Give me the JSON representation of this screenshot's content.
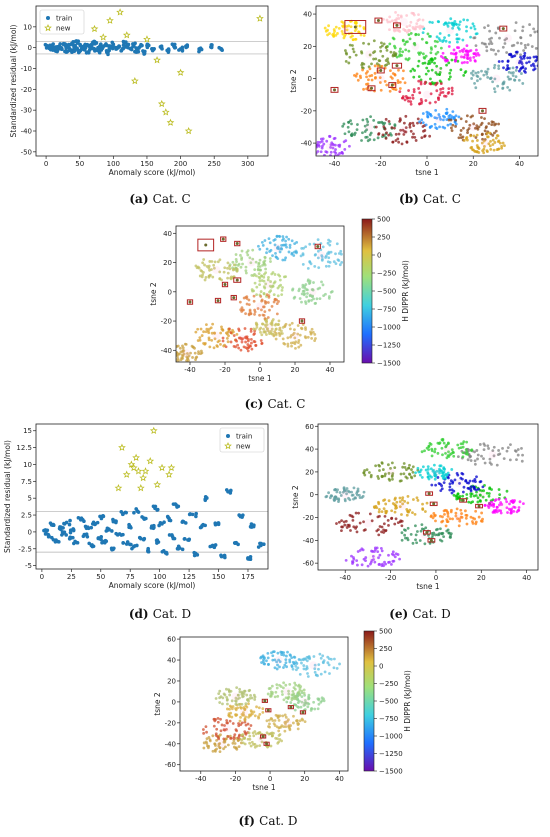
{
  "chart_data": [
    {
      "id": "a",
      "type": "scatter",
      "caption_label": "(a)",
      "caption_text": "Cat. C",
      "xlabel": "Anomaly score (kJ/mol)",
      "ylabel": "Standardized residual (kJ/mol)",
      "xlim": [
        -15,
        330
      ],
      "ylim": [
        -52,
        20
      ],
      "xticks": [
        0,
        50,
        100,
        150,
        200,
        250,
        300
      ],
      "yticks": [
        -50,
        -40,
        -30,
        -20,
        -10,
        0,
        10
      ],
      "hlines": [
        3,
        -3
      ],
      "legend_position": "top-left",
      "series": [
        {
          "name": "train",
          "marker": "circle",
          "color": "#1f77b4",
          "x": [
            2,
            5,
            8,
            11,
            14,
            17,
            20,
            23,
            26,
            29,
            32,
            35,
            38,
            41,
            44,
            47,
            50,
            53,
            56,
            59,
            62,
            65,
            68,
            71,
            74,
            77,
            80,
            84,
            88,
            92,
            96,
            100,
            104,
            108,
            112,
            116,
            120,
            125,
            130,
            135,
            140,
            145,
            150,
            160,
            170,
            180,
            190,
            200,
            210,
            230,
            245,
            260
          ],
          "y": [
            0.5,
            -0.4,
            1.1,
            -0.8,
            0.3,
            -1.2,
            0.9,
            -0.2,
            1.5,
            -1.6,
            0.7,
            -0.6,
            1.9,
            -1.1,
            0.2,
            2.2,
            -1.8,
            0.6,
            -0.9,
            1.3,
            -2.1,
            0.4,
            1.7,
            -0.5,
            2.4,
            -1.4,
            0.8,
            -0.3,
            1.2,
            -2.4,
            0.5,
            1.6,
            -0.7,
            0.3,
            -1.5,
            2.1,
            0.9,
            -0.4,
            1.4,
            -1.1,
            0.6,
            -2.0,
            1.0,
            -0.8,
            0.4,
            -1.3,
            0.7,
            -0.6,
            1.1,
            -0.9,
            0.3,
            -0.5
          ]
        },
        {
          "name": "new",
          "marker": "star",
          "color": "#bcbd22",
          "x": [
            72,
            85,
            95,
            110,
            120,
            132,
            150,
            165,
            172,
            178,
            185,
            200,
            212,
            318
          ],
          "y": [
            9,
            5,
            13,
            17,
            6,
            -16,
            4,
            -6,
            -27,
            -31,
            -36,
            -12,
            -40,
            14
          ]
        }
      ]
    },
    {
      "id": "b",
      "type": "scatter",
      "caption_label": "(b)",
      "caption_text": "Cat. C",
      "xlabel": "tsne 1",
      "ylabel": "tsne 2",
      "xlim": [
        -48,
        48
      ],
      "ylim": [
        -48,
        45
      ],
      "xticks": [
        -40,
        -20,
        0,
        20,
        40
      ],
      "yticks": [
        -40,
        -20,
        0,
        20,
        40
      ],
      "clusters": [
        {
          "x": -42,
          "y": -42,
          "r": 3,
          "color": "#9b30ff"
        },
        {
          "x": -25,
          "y": -30,
          "r": 4,
          "color": "#2e8b57"
        },
        {
          "x": -10,
          "y": -32,
          "r": 4,
          "color": "#8b1a1a"
        },
        {
          "x": 5,
          "y": -25,
          "r": 3,
          "color": "#1e90ff"
        },
        {
          "x": 20,
          "y": -30,
          "r": 4,
          "color": "#8b4513"
        },
        {
          "x": 25,
          "y": -40,
          "r": 3,
          "color": "#d4a017"
        },
        {
          "x": 30,
          "y": 0,
          "r": 4,
          "color": "#5f9ea0"
        },
        {
          "x": 35,
          "y": 25,
          "r": 5,
          "color": "#808080"
        },
        {
          "x": 40,
          "y": 10,
          "r": 3,
          "color": "#0000cd"
        },
        {
          "x": 10,
          "y": 30,
          "r": 4,
          "color": "#00ced1"
        },
        {
          "x": -5,
          "y": 20,
          "r": 4,
          "color": "#32cd32"
        },
        {
          "x": -25,
          "y": 15,
          "r": 4,
          "color": "#6b8e23"
        },
        {
          "x": -20,
          "y": 0,
          "r": 4,
          "color": "#ff7f0e"
        },
        {
          "x": 5,
          "y": 5,
          "r": 4,
          "color": "#00c000"
        },
        {
          "x": 15,
          "y": 15,
          "r": 3,
          "color": "#ff00ff"
        },
        {
          "x": -35,
          "y": 30,
          "r": 3,
          "color": "#ffd700"
        },
        {
          "x": 0,
          "y": -10,
          "r": 4,
          "color": "#dc143c"
        },
        {
          "x": -10,
          "y": 35,
          "r": 3,
          "color": "#ffc0cb"
        }
      ],
      "boxes": [
        [
          -31,
          32,
          9,
          8
        ],
        [
          -21,
          36,
          3,
          3
        ],
        [
          -13,
          33,
          3,
          3
        ],
        [
          -13,
          8,
          4,
          3
        ],
        [
          -20,
          5,
          3,
          3
        ],
        [
          -24,
          -6,
          3,
          3
        ],
        [
          -40,
          -7,
          3,
          3
        ],
        [
          -15,
          -4,
          3,
          3
        ],
        [
          24,
          -20,
          3,
          3
        ],
        [
          33,
          31,
          3,
          3
        ]
      ],
      "colorbar": null
    },
    {
      "id": "c",
      "type": "scatter",
      "caption_label": "(c)",
      "caption_text": "Cat. C",
      "xlabel": "tsne 1",
      "ylabel": "tsne 2",
      "xlim": [
        -48,
        48
      ],
      "ylim": [
        -48,
        45
      ],
      "xticks": [
        -40,
        -20,
        0,
        20,
        40
      ],
      "yticks": [
        -40,
        -20,
        0,
        20,
        40
      ],
      "clusters": [
        {
          "x": -42,
          "y": -42,
          "r": 3,
          "color": "#c8a040"
        },
        {
          "x": -25,
          "y": -30,
          "r": 4,
          "color": "#d9a030"
        },
        {
          "x": -10,
          "y": -32,
          "r": 4,
          "color": "#e05030"
        },
        {
          "x": 5,
          "y": -25,
          "r": 3,
          "color": "#c8c060"
        },
        {
          "x": 20,
          "y": -30,
          "r": 4,
          "color": "#d0b050"
        },
        {
          "x": 30,
          "y": 0,
          "r": 4,
          "color": "#90d090"
        },
        {
          "x": 35,
          "y": 25,
          "r": 5,
          "color": "#60c0e0"
        },
        {
          "x": 10,
          "y": 30,
          "r": 4,
          "color": "#40b0e0"
        },
        {
          "x": -5,
          "y": 20,
          "r": 4,
          "color": "#a0d080"
        },
        {
          "x": -25,
          "y": 15,
          "r": 4,
          "color": "#c0c060"
        },
        {
          "x": 5,
          "y": 5,
          "r": 4,
          "color": "#b0d070"
        },
        {
          "x": 0,
          "y": -10,
          "r": 4,
          "color": "#e08040"
        }
      ],
      "boxes": [
        [
          -31,
          32,
          9,
          8
        ],
        [
          -21,
          36,
          3,
          3
        ],
        [
          -13,
          33,
          3,
          3
        ],
        [
          -13,
          8,
          4,
          3
        ],
        [
          -20,
          5,
          3,
          3
        ],
        [
          -24,
          -6,
          3,
          3
        ],
        [
          -40,
          -7,
          3,
          3
        ],
        [
          -15,
          -4,
          3,
          3
        ],
        [
          24,
          -20,
          3,
          3
        ],
        [
          33,
          31,
          3,
          3
        ]
      ],
      "colorbar": {
        "label": "H DIPPR (kJ/mol)",
        "range": [
          -1500,
          500
        ],
        "ticks": [
          500,
          250,
          0,
          -250,
          -500,
          -750,
          -1000,
          -1250,
          -1500
        ]
      }
    },
    {
      "id": "d",
      "type": "scatter",
      "caption_label": "(d)",
      "caption_text": "Cat. D",
      "xlabel": "Anomaly score (kJ/mol)",
      "ylabel": "Standardized residual (kJ/mol)",
      "xlim": [
        -5,
        192
      ],
      "ylim": [
        -5.5,
        16
      ],
      "xticks": [
        0,
        25,
        50,
        75,
        100,
        125,
        150,
        175
      ],
      "yticks": [
        -5.0,
        -2.5,
        0.0,
        2.5,
        5.0,
        7.5,
        10.0,
        12.5,
        15.0
      ],
      "hlines": [
        3,
        -3
      ],
      "legend_position": "top-right",
      "series": [
        {
          "name": "train",
          "marker": "circle",
          "color": "#1f77b4",
          "x": [
            3,
            6,
            9,
            12,
            15,
            18,
            21,
            24,
            27,
            30,
            33,
            36,
            39,
            42,
            45,
            48,
            51,
            54,
            57,
            60,
            63,
            66,
            69,
            72,
            75,
            78,
            81,
            84,
            87,
            90,
            93,
            96,
            99,
            102,
            105,
            108,
            111,
            114,
            117,
            120,
            124,
            128,
            132,
            136,
            140,
            145,
            150,
            155,
            160,
            165,
            170,
            175,
            180,
            186
          ],
          "y": [
            0.3,
            -0.6,
            1.0,
            -1.2,
            0.5,
            -0.2,
            1.4,
            -0.8,
            0.2,
            -1.6,
            1.8,
            -0.4,
            0.7,
            -2.0,
            1.1,
            -0.9,
            2.3,
            -1.3,
            0.4,
            -2.5,
            1.6,
            -0.3,
            2.7,
            -1.8,
            0.8,
            -2.2,
            3.1,
            -1.0,
            1.9,
            -2.8,
            0.6,
            3.5,
            -1.5,
            1.2,
            -3.1,
            2.0,
            -0.7,
            4.0,
            -2.4,
            1.5,
            -1.2,
            2.6,
            -3.4,
            0.9,
            5.0,
            -2.0,
            1.3,
            -3.5,
            6.0,
            -1.6,
            2.2,
            -4.0,
            1.0,
            -2.0
          ]
        },
        {
          "name": "new",
          "marker": "star",
          "color": "#bcbd22",
          "x": [
            65,
            68,
            72,
            76,
            78,
            80,
            82,
            84,
            86,
            88,
            92,
            95,
            98,
            102,
            108,
            110
          ],
          "y": [
            6.5,
            12.5,
            8.5,
            10.0,
            9.5,
            11.0,
            9.0,
            6.5,
            8.0,
            9.0,
            10.5,
            15.0,
            7.0,
            9.5,
            8.5,
            9.5
          ]
        }
      ]
    },
    {
      "id": "e",
      "type": "scatter",
      "caption_label": "(e)",
      "caption_text": "Cat. D",
      "xlabel": "tsne 1",
      "ylabel": "tsne 2",
      "xlim": [
        -52,
        45
      ],
      "ylim": [
        -66,
        62
      ],
      "xticks": [
        -40,
        -20,
        0,
        20,
        40
      ],
      "yticks": [
        -60,
        -40,
        -20,
        0,
        20,
        40,
        60
      ],
      "clusters": [
        {
          "x": -28,
          "y": -55,
          "r": 4,
          "color": "#9b30ff"
        },
        {
          "x": -30,
          "y": -25,
          "r": 5,
          "color": "#8b1a1a"
        },
        {
          "x": -15,
          "y": -10,
          "r": 4,
          "color": "#d4a017"
        },
        {
          "x": -5,
          "y": -35,
          "r": 4,
          "color": "#2e8b57"
        },
        {
          "x": 10,
          "y": -20,
          "r": 4,
          "color": "#ff7f0e"
        },
        {
          "x": 20,
          "y": 0,
          "r": 4,
          "color": "#00c000"
        },
        {
          "x": 25,
          "y": 35,
          "r": 5,
          "color": "#808080"
        },
        {
          "x": 10,
          "y": 10,
          "r": 4,
          "color": "#0000cd"
        },
        {
          "x": 5,
          "y": 40,
          "r": 4,
          "color": "#32cd32"
        },
        {
          "x": -20,
          "y": 20,
          "r": 4,
          "color": "#6b8e23"
        },
        {
          "x": 30,
          "y": -10,
          "r": 3,
          "color": "#ff00ff"
        },
        {
          "x": -40,
          "y": 0,
          "r": 3,
          "color": "#5f9ea0"
        },
        {
          "x": 0,
          "y": 20,
          "r": 3,
          "color": "#00ced1"
        }
      ],
      "boxes": [
        [
          -3,
          1,
          3,
          3
        ],
        [
          -1,
          -8,
          3,
          3
        ],
        [
          12,
          -5,
          3,
          3
        ],
        [
          19,
          -10,
          3,
          3
        ],
        [
          -4,
          -33,
          3,
          3
        ],
        [
          -2,
          -40,
          3,
          3
        ]
      ],
      "colorbar": null
    },
    {
      "id": "f",
      "type": "scatter",
      "caption_label": "(f)",
      "caption_text": "Cat. D",
      "xlabel": "tsne 1",
      "ylabel": "tsne 2",
      "xlim": [
        -52,
        45
      ],
      "ylim": [
        -66,
        62
      ],
      "xticks": [
        -40,
        -20,
        0,
        20,
        40
      ],
      "yticks": [
        -60,
        -40,
        -20,
        0,
        20,
        40,
        60
      ],
      "clusters": [
        {
          "x": -28,
          "y": -40,
          "r": 4,
          "color": "#c8a040"
        },
        {
          "x": -25,
          "y": -25,
          "r": 5,
          "color": "#d05030"
        },
        {
          "x": -15,
          "y": -10,
          "r": 4,
          "color": "#d9b040"
        },
        {
          "x": -5,
          "y": -35,
          "r": 4,
          "color": "#c0c060"
        },
        {
          "x": 10,
          "y": -20,
          "r": 4,
          "color": "#d0b050"
        },
        {
          "x": 20,
          "y": 0,
          "r": 4,
          "color": "#90d090"
        },
        {
          "x": 25,
          "y": 35,
          "r": 5,
          "color": "#60c0e0"
        },
        {
          "x": 10,
          "y": 10,
          "r": 4,
          "color": "#a0d080"
        },
        {
          "x": 5,
          "y": 40,
          "r": 4,
          "color": "#40b0e0"
        },
        {
          "x": -20,
          "y": 5,
          "r": 4,
          "color": "#b0c070"
        }
      ],
      "boxes": [
        [
          -3,
          1,
          3,
          3
        ],
        [
          -1,
          -8,
          3,
          3
        ],
        [
          12,
          -5,
          3,
          3
        ],
        [
          19,
          -10,
          3,
          3
        ],
        [
          -4,
          -33,
          3,
          3
        ],
        [
          -2,
          -40,
          3,
          3
        ]
      ],
      "colorbar": {
        "label": "H DIPPR (kJ/mol)",
        "range": [
          -1500,
          500
        ],
        "ticks": [
          500,
          250,
          0,
          -250,
          -500,
          -750,
          -1000,
          -1250,
          -1500
        ]
      }
    }
  ]
}
